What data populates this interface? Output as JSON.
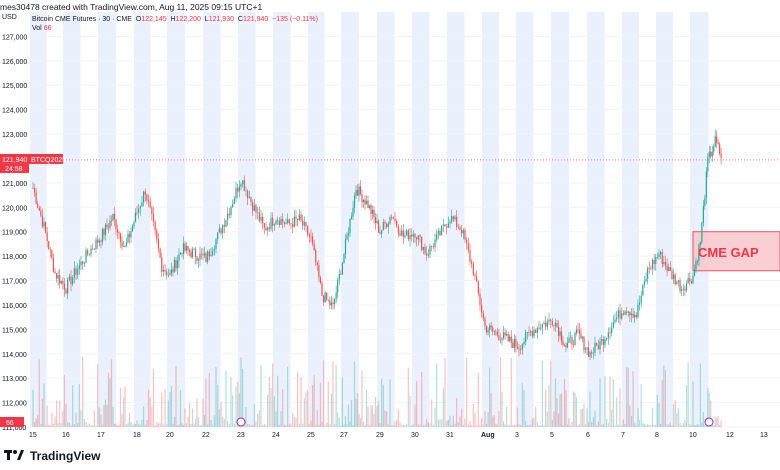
{
  "header": {
    "text": "mes30478 created with TradingView.com, Aug 11, 2025 09:15 UTC+1"
  },
  "legend": {
    "title": "Bitcoin CME Futures · 30 · CME",
    "o_label": "O",
    "o": "122,145",
    "h_label": "H",
    "h": "122,200",
    "l_label": "L",
    "l": "121,930",
    "c_label": "C",
    "c": "121,940",
    "chg": "−135 (−0.11%)",
    "vol_label": "Vol",
    "vol": "66"
  },
  "axis": {
    "y_unit": "USD",
    "y_ticks": [
      "127,000",
      "126,000",
      "125,000",
      "124,000",
      "123,000",
      "121,000",
      "120,000",
      "119,000",
      "118,000",
      "117,000",
      "116,000",
      "115,000",
      "114,000",
      "113,000",
      "112,000",
      "111,000"
    ],
    "x_ticks": [
      "15",
      "16",
      "17",
      "18",
      "20",
      "22",
      "23",
      "24",
      "25",
      "27",
      "29",
      "30",
      "31",
      "Aug",
      "3",
      "5",
      "6",
      "7",
      "8",
      "10",
      "12",
      "13"
    ]
  },
  "price_tag": {
    "value": "121,940",
    "symbol": "BTCQ2025",
    "countdown": "24:58"
  },
  "volume_badge": "66",
  "annotation": {
    "label": "CME GAP"
  },
  "footer": {
    "brand": "TradingView"
  },
  "colors": {
    "up": "#26a69a",
    "down": "#ef5350",
    "session_band": "#eaf0fc",
    "gap_fill": "#f8c7cd",
    "gap_border": "#f23645",
    "accent": "#f23645"
  },
  "chart_data": {
    "type": "candlestick",
    "symbol": "Bitcoin CME Futures",
    "interval": "30",
    "ylim": [
      111000,
      128000
    ],
    "x_labels": [
      "15",
      "16",
      "17",
      "18",
      "20",
      "22",
      "23",
      "24",
      "25",
      "27",
      "29",
      "30",
      "31",
      "Aug",
      "3",
      "5",
      "6",
      "7",
      "8",
      "10",
      "12",
      "13"
    ],
    "last": 121940,
    "close_path": [
      {
        "x": "15",
        "y": 120800
      },
      {
        "x": "15",
        "y": 119200
      },
      {
        "x": "15",
        "y": 117300
      },
      {
        "x": "16",
        "y": 116700
      },
      {
        "x": "16",
        "y": 117500
      },
      {
        "x": "16",
        "y": 118200
      },
      {
        "x": "17",
        "y": 118800
      },
      {
        "x": "17",
        "y": 119600
      },
      {
        "x": "17",
        "y": 118300
      },
      {
        "x": "18",
        "y": 119800
      },
      {
        "x": "18",
        "y": 120700
      },
      {
        "x": "18",
        "y": 119200
      },
      {
        "x": "18",
        "y": 117600
      },
      {
        "x": "20",
        "y": 117200
      },
      {
        "x": "20",
        "y": 118300
      },
      {
        "x": "20",
        "y": 118100
      },
      {
        "x": "22",
        "y": 117900
      },
      {
        "x": "22",
        "y": 118800
      },
      {
        "x": "22",
        "y": 119900
      },
      {
        "x": "23",
        "y": 121200
      },
      {
        "x": "23",
        "y": 120100
      },
      {
        "x": "23",
        "y": 119100
      },
      {
        "x": "24",
        "y": 119600
      },
      {
        "x": "24",
        "y": 119300
      },
      {
        "x": "24",
        "y": 119500
      },
      {
        "x": "25",
        "y": 118700
      },
      {
        "x": "25",
        "y": 116400
      },
      {
        "x": "25",
        "y": 115900
      },
      {
        "x": "27",
        "y": 118100
      },
      {
        "x": "27",
        "y": 120800
      },
      {
        "x": "27",
        "y": 120100
      },
      {
        "x": "29",
        "y": 119000
      },
      {
        "x": "29",
        "y": 119700
      },
      {
        "x": "29",
        "y": 118800
      },
      {
        "x": "30",
        "y": 119000
      },
      {
        "x": "30",
        "y": 118100
      },
      {
        "x": "30",
        "y": 118800
      },
      {
        "x": "31",
        "y": 119600
      },
      {
        "x": "31",
        "y": 119100
      },
      {
        "x": "31",
        "y": 117400
      },
      {
        "x": "Aug",
        "y": 115100
      },
      {
        "x": "Aug",
        "y": 114700
      },
      {
        "x": "3",
        "y": 114300
      },
      {
        "x": "3",
        "y": 114900
      },
      {
        "x": "3",
        "y": 115200
      },
      {
        "x": "5",
        "y": 115400
      },
      {
        "x": "5",
        "y": 114300
      },
      {
        "x": "5",
        "y": 114800
      },
      {
        "x": "6",
        "y": 114000
      },
      {
        "x": "6",
        "y": 114500
      },
      {
        "x": "6",
        "y": 115300
      },
      {
        "x": "7",
        "y": 115900
      },
      {
        "x": "7",
        "y": 115600
      },
      {
        "x": "7",
        "y": 117400
      },
      {
        "x": "8",
        "y": 118100
      },
      {
        "x": "8",
        "y": 117300
      },
      {
        "x": "8",
        "y": 116700
      },
      {
        "x": "10",
        "y": 117200
      },
      {
        "x": "10",
        "y": 118600
      },
      {
        "x": "10",
        "y": 121900
      },
      {
        "x": "10",
        "y": 122700
      },
      {
        "x": "10",
        "y": 121940
      }
    ],
    "gap_zone": {
      "label": "CME GAP",
      "from": 117400,
      "to": 119000
    }
  }
}
